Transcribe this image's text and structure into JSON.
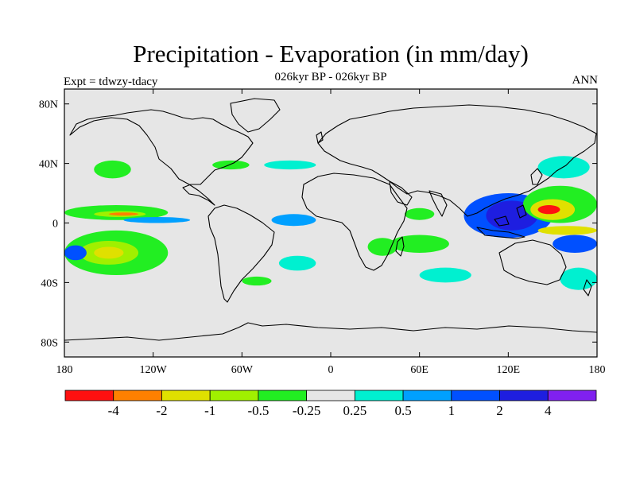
{
  "header": {
    "title": "Precipitation - Evaporation (in mm/day)",
    "subtitle": "026kyr BP - 026kyr BP",
    "left_label": "Expt = tdwzy-tdacy",
    "right_label": "ANN"
  },
  "map": {
    "projection": "cylindrical equidistant",
    "lon_range": [
      -180,
      180
    ],
    "lat_range": [
      -90,
      90
    ],
    "background_color": "#e6e6e6",
    "coastline_color": "#000000",
    "x_ticks": [
      {
        "lon": -180,
        "label": "180"
      },
      {
        "lon": -120,
        "label": "120W"
      },
      {
        "lon": -60,
        "label": "60W"
      },
      {
        "lon": 0,
        "label": "0"
      },
      {
        "lon": 60,
        "label": "60E"
      },
      {
        "lon": 120,
        "label": "120E"
      },
      {
        "lon": 180,
        "label": "180"
      }
    ],
    "y_ticks": [
      {
        "lat": 80,
        "label": "80N"
      },
      {
        "lat": 40,
        "label": "40N"
      },
      {
        "lat": 0,
        "label": "0"
      },
      {
        "lat": -40,
        "label": "40S"
      },
      {
        "lat": -80,
        "label": "80S"
      }
    ],
    "regions": [
      {
        "name": "pacific-north-itcz",
        "lon": [
          -180,
          -110
        ],
        "lat": [
          2,
          12
        ],
        "level": "neg-green"
      },
      {
        "name": "pacific-north-itcz-core",
        "lon": [
          -160,
          -125
        ],
        "lat": [
          4,
          8
        ],
        "level": "neg-lime"
      },
      {
        "name": "pacific-north-itcz-orange",
        "lon": [
          -150,
          -130
        ],
        "lat": [
          5,
          7
        ],
        "level": "neg-orange"
      },
      {
        "name": "pacific-south-band",
        "lon": [
          -180,
          -110
        ],
        "lat": [
          -35,
          -5
        ],
        "level": "neg-green"
      },
      {
        "name": "pacific-south-band-core",
        "lon": [
          -170,
          -130
        ],
        "lat": [
          -28,
          -12
        ],
        "level": "neg-lime"
      },
      {
        "name": "pacific-south-band-yellow",
        "lon": [
          -160,
          -140
        ],
        "lat": [
          -24,
          -16
        ],
        "level": "neg-yellow"
      },
      {
        "name": "pacific-south-blue",
        "lon": [
          -180,
          -165
        ],
        "lat": [
          -25,
          -15
        ],
        "level": "pos-blue"
      },
      {
        "name": "pacific-eq-blue",
        "lon": [
          -140,
          -95
        ],
        "lat": [
          0,
          4
        ],
        "level": "pos-sky"
      },
      {
        "name": "n-pacific-green",
        "lon": [
          -160,
          -135
        ],
        "lat": [
          30,
          42
        ],
        "level": "neg-green"
      },
      {
        "name": "n-atlantic-green",
        "lon": [
          -80,
          -55
        ],
        "lat": [
          36,
          42
        ],
        "level": "neg-green"
      },
      {
        "name": "n-atlantic-cyan",
        "lon": [
          -45,
          -10
        ],
        "lat": [
          36,
          42
        ],
        "level": "pos-cyan"
      },
      {
        "name": "atlantic-eq-blue",
        "lon": [
          -40,
          -10
        ],
        "lat": [
          -2,
          6
        ],
        "level": "pos-sky"
      },
      {
        "name": "s-atlantic-cyan",
        "lon": [
          -35,
          -10
        ],
        "lat": [
          -32,
          -22
        ],
        "level": "pos-cyan"
      },
      {
        "name": "s-america-green",
        "lon": [
          -60,
          -40
        ],
        "lat": [
          -42,
          -36
        ],
        "level": "neg-green"
      },
      {
        "name": "africa-green",
        "lon": [
          25,
          45
        ],
        "lat": [
          -22,
          -10
        ],
        "level": "neg-green"
      },
      {
        "name": "indian-ocean-green",
        "lon": [
          40,
          80
        ],
        "lat": [
          -20,
          -8
        ],
        "level": "neg-green"
      },
      {
        "name": "indian-ocean-cyan",
        "lon": [
          60,
          95
        ],
        "lat": [
          -40,
          -30
        ],
        "level": "pos-cyan"
      },
      {
        "name": "arabian-sea-green",
        "lon": [
          50,
          70
        ],
        "lat": [
          2,
          10
        ],
        "level": "neg-green"
      },
      {
        "name": "warm-pool-blue",
        "lon": [
          90,
          150
        ],
        "lat": [
          -10,
          20
        ],
        "level": "pos-blue"
      },
      {
        "name": "warm-pool-royal",
        "lon": [
          105,
          140
        ],
        "lat": [
          -5,
          15
        ],
        "level": "pos-royal"
      },
      {
        "name": "w-pacific-green",
        "lon": [
          130,
          180
        ],
        "lat": [
          0,
          25
        ],
        "level": "neg-green"
      },
      {
        "name": "w-pacific-yellow",
        "lon": [
          135,
          165
        ],
        "lat": [
          2,
          16
        ],
        "level": "neg-yellow"
      },
      {
        "name": "w-pacific-red",
        "lon": [
          140,
          155
        ],
        "lat": [
          6,
          12
        ],
        "level": "neg-red"
      },
      {
        "name": "sw-pacific-yellow",
        "lon": [
          140,
          180
        ],
        "lat": [
          -8,
          -2
        ],
        "level": "neg-yellow"
      },
      {
        "name": "sw-pacific-blue",
        "lon": [
          150,
          180
        ],
        "lat": [
          -20,
          -8
        ],
        "level": "pos-blue"
      },
      {
        "name": "nw-pacific-cyan",
        "lon": [
          140,
          175
        ],
        "lat": [
          30,
          45
        ],
        "level": "pos-cyan"
      },
      {
        "name": "tasman-cyan",
        "lon": [
          155,
          180
        ],
        "lat": [
          -45,
          -30
        ],
        "level": "pos-cyan"
      }
    ]
  },
  "colorbar": {
    "colors": [
      "#ff1010",
      "#ff8000",
      "#e0e000",
      "#a0f000",
      "#22ee22",
      "#e6e6e6",
      "#00f0d0",
      "#00a0ff",
      "#0050ff",
      "#1e1ee0",
      "#8020f0"
    ],
    "labels": [
      "-4",
      "-2",
      "-1",
      "-0.5",
      "-0.25",
      "0.25",
      "0.5",
      "1",
      "2",
      "4"
    ]
  },
  "level_colors": {
    "neg-red": "#ff1010",
    "neg-orange": "#ff8000",
    "neg-yellow": "#e0e000",
    "neg-lime": "#a0f000",
    "neg-green": "#22ee22",
    "pos-cyan": "#00f0d0",
    "pos-sky": "#00a0ff",
    "pos-blue": "#0050ff",
    "pos-royal": "#1e1ee0",
    "pos-violet": "#8020f0"
  }
}
